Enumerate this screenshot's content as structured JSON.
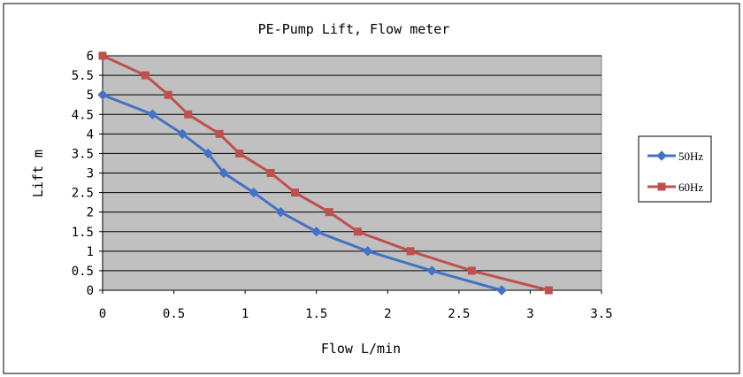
{
  "chart_data": {
    "type": "line",
    "title": "PE-Pump Lift, Flow meter",
    "xlabel": "Flow  L/min",
    "ylabel": "Lift m",
    "xlim": [
      0,
      3.5
    ],
    "ylim": [
      0,
      6
    ],
    "x_ticks": [
      0,
      0.5,
      1,
      1.5,
      2,
      2.5,
      3,
      3.5
    ],
    "x_tick_labels": [
      "0",
      "0.5",
      "1",
      "1.5",
      "2",
      "2.5",
      "3",
      "3.5"
    ],
    "y_ticks": [
      0,
      0.5,
      1,
      1.5,
      2,
      2.5,
      3,
      3.5,
      4,
      4.5,
      5,
      5.5,
      6
    ],
    "y_tick_labels": [
      "0",
      "0.5",
      "1",
      "1.5",
      "2",
      "2.5",
      "3",
      "3.5",
      "4",
      "4.5",
      "5",
      "5.5",
      "6"
    ],
    "grid": "horizontal",
    "legend_position": "right",
    "plot_background": "#c0c0c0",
    "series": [
      {
        "name": "50Hz",
        "color": "#4472c4",
        "marker": "diamond",
        "x": [
          0,
          0.35,
          0.56,
          0.74,
          0.85,
          1.06,
          1.25,
          1.5,
          1.86,
          2.31,
          2.8
        ],
        "y": [
          5,
          4.5,
          4,
          3.5,
          3,
          2.5,
          2,
          1.5,
          1,
          0.5,
          0
        ]
      },
      {
        "name": "60Hz",
        "color": "#c0504d",
        "marker": "square",
        "x": [
          0,
          0.3,
          0.46,
          0.6,
          0.82,
          0.96,
          1.18,
          1.35,
          1.59,
          1.79,
          2.16,
          2.59,
          3.13
        ],
        "y": [
          6,
          5.5,
          5,
          4.5,
          4,
          3.5,
          3,
          2.5,
          2,
          1.5,
          1,
          0.5,
          0
        ]
      }
    ]
  }
}
